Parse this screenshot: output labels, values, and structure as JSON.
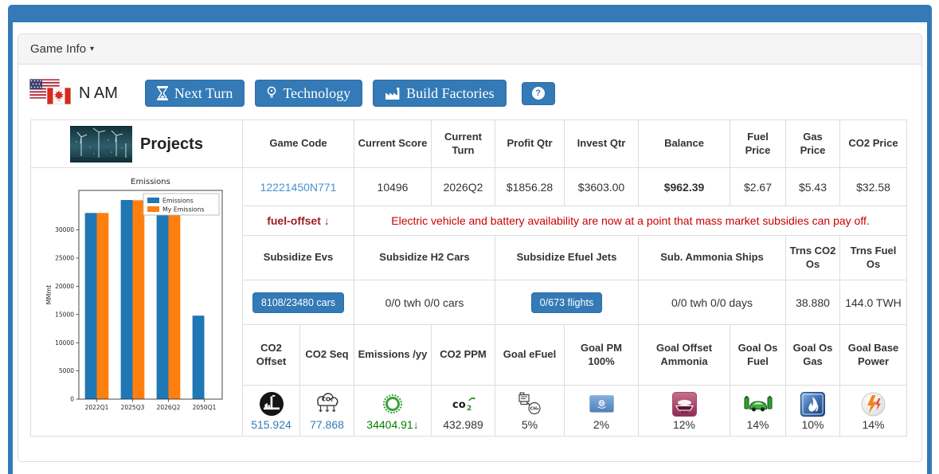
{
  "panel": {
    "title": "Game Info",
    "caret": "▾"
  },
  "toolbar": {
    "region": "N AM",
    "next_turn": "Next Turn",
    "technology": "Technology",
    "build_factories": "Build Factories",
    "help": "?"
  },
  "projects": {
    "title": "Projects"
  },
  "stats": {
    "headers": {
      "game_code": "Game Code",
      "current_score": "Current Score",
      "current_turn": "Current Turn",
      "profit_qtr": "Profit Qtr",
      "invest_qtr": "Invest Qtr",
      "balance": "Balance",
      "fuel_price": "Fuel Price",
      "gas_price": "Gas Price",
      "co2_price": "CO2 Price"
    },
    "values": {
      "game_code": "12221450N771",
      "current_score": "10496",
      "current_turn": "2026Q2",
      "profit_qtr": "$1856.28",
      "invest_qtr": "$3603.00",
      "balance": "$962.39",
      "fuel_price": "$2.67",
      "gas_price": "$5.43",
      "co2_price": "$32.58"
    }
  },
  "alert": {
    "label": "fuel-offset ↓",
    "message": "Electric vehicle and battery availability are now at a point that mass market subsidies can pay off."
  },
  "subsidies": {
    "headers": {
      "evs": "Subsidize Evs",
      "h2_cars": "Subsidize H2 Cars",
      "efuel_jets": "Subsidize Efuel Jets",
      "ammonia_ships": "Sub. Ammonia Ships",
      "trns_co2_os": "Trns CO2 Os",
      "trns_fuel_os": "Trns Fuel Os"
    },
    "values": {
      "evs": "8108/23480 cars",
      "h2_cars": "0/0 twh 0/0 cars",
      "efuel_jets": "0/673 flights",
      "ammonia_ships": "0/0 twh 0/0 days",
      "trns_co2_os": "38.880",
      "trns_fuel_os": "144.0 TWH"
    }
  },
  "metrics": {
    "headers": {
      "co2_offset": "CO2 Offset",
      "co2_seq": "CO2 Seq",
      "emissions_yy": "Emissions /yy",
      "co2_ppm": "CO2 PPM",
      "goal_efuel": "Goal eFuel",
      "goal_pm": "Goal PM 100%",
      "goal_offset_ammonia": "Goal Offset Ammonia",
      "goal_os_fuel": "Goal Os Fuel",
      "goal_os_gas": "Goal Os Gas",
      "goal_base_power": "Goal Base Power"
    },
    "values": {
      "co2_offset": "515.924",
      "co2_seq": "77.868",
      "emissions_yy": "34404.91↓",
      "co2_ppm": "432.989",
      "goal_efuel": "5%",
      "goal_pm": "2%",
      "goal_offset_ammonia": "12%",
      "goal_os_fuel": "14%",
      "goal_os_gas": "10%",
      "goal_base_power": "14%"
    }
  },
  "colors": {
    "frame_blue": "#337ab7",
    "link_blue": "#4a90d2",
    "money_green": "#008000",
    "alert_red": "#cc0000",
    "bar_blue": "#1f77b4",
    "bar_orange": "#ff7f0e"
  },
  "chart_data": {
    "type": "bar",
    "title": "Emissions",
    "xlabel": "",
    "ylabel": "MMmt",
    "categories": [
      "2022Q1",
      "2025Q3",
      "2026Q2",
      "2050Q1"
    ],
    "series": [
      {
        "name": "Emissions",
        "color": "#1f77b4",
        "values": [
          33000,
          35300,
          34400,
          14800
        ]
      },
      {
        "name": "My Emissions",
        "color": "#ff7f0e",
        "values": [
          33000,
          35250,
          33300,
          null
        ]
      }
    ],
    "ylim": [
      0,
      37000
    ],
    "ytick_step": 5000,
    "legend_position": "upper right",
    "grid": false
  }
}
